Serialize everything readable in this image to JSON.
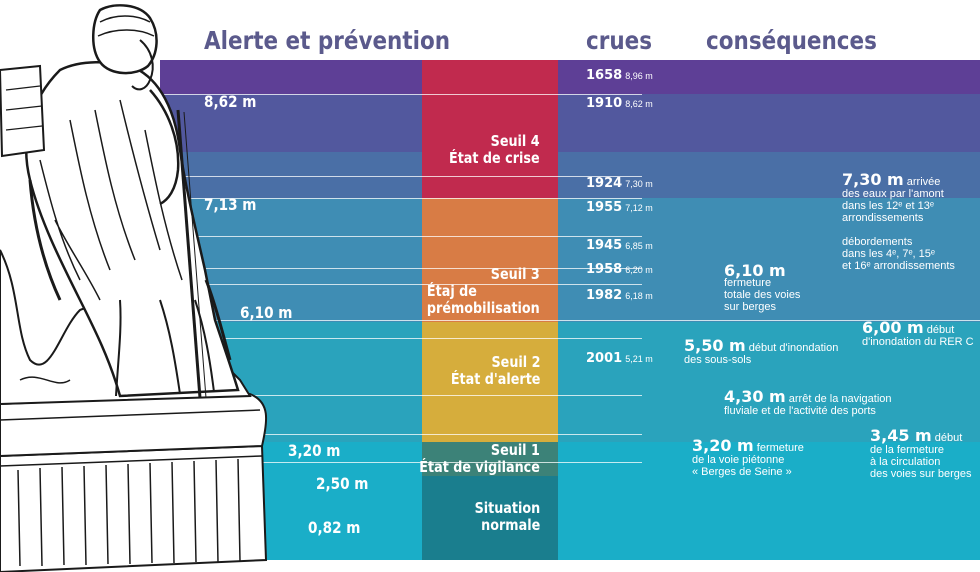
{
  "headings": {
    "alerte": "Alerte et prévention",
    "crues": "crues",
    "consequences": "conséquences"
  },
  "colors": {
    "violet": "#5e3f96",
    "indigo": "#52589e",
    "steel": "#4a6fa6",
    "blue": "#3f8db4",
    "teal": "#2aa3bc",
    "cyan": "#1aaec8",
    "heading": "#5b5a8c",
    "seuil4": "#c12a4e",
    "seuil3": "#d87c45",
    "seuil2": "#d6ad3c",
    "seuil1": "#3c8278",
    "normal": "#1a7e8e"
  },
  "illustration": "statue-du-zouave-icon",
  "gauge_marks": [
    "8,62 m",
    "7,13 m",
    "6,10 m",
    "3,20 m",
    "2,50 m",
    "0,82 m"
  ],
  "seuils": [
    {
      "line1": "Seuil 4",
      "line2": "État de crise"
    },
    {
      "line1": "Seuil 3",
      "line2": "Étaj de",
      "line3": "prémobilisation"
    },
    {
      "line1": "Seuil 2",
      "line2": "État d'alerte"
    },
    {
      "line1": "Seuil 1",
      "line2": "État de vigilance"
    },
    {
      "line1": "Situation",
      "line2": "normale"
    }
  ],
  "crues": [
    {
      "year": "1658",
      "height": "8,96 m"
    },
    {
      "year": "1910",
      "height": "8,62 m"
    },
    {
      "year": "1924",
      "height": "7,30 m"
    },
    {
      "year": "1955",
      "height": "7,12 m"
    },
    {
      "year": "1945",
      "height": "6,85 m"
    },
    {
      "year": "1958",
      "height": "6,20 m"
    },
    {
      "year": "1982",
      "height": "6,18 m"
    },
    {
      "year": "2001",
      "height": "5,21 m"
    }
  ],
  "consequences": [
    {
      "big": "7,30 m",
      "l1": "arrivée",
      "l2": "des eaux par l'amont",
      "l3": "dans les 12ᵉ et 13ᵉ",
      "l4": "arrondissements"
    },
    {
      "l1": "débordements",
      "l2": "dans les 4ᵉ, 7ᵉ, 15ᵉ",
      "l3": "et 16ᵉ arrondissements"
    },
    {
      "big": "6,10 m",
      "l1": "fermeture",
      "l2": "totale des voies",
      "l3": "sur berges"
    },
    {
      "big": "6,00 m",
      "l1": "début",
      "l2": "d'inondation du RER C"
    },
    {
      "big": "5,50 m",
      "l1": "début d'inondation",
      "l2": "des sous-sols"
    },
    {
      "big": "4,30 m",
      "l1": "arrêt de la navigation",
      "l2": "fluviale et de l'activité des ports"
    },
    {
      "big": "3,20 m",
      "l1": "fermeture",
      "l2": "de la voie piétonne",
      "l3": "« Berges de Seine »"
    },
    {
      "big": "3,45 m",
      "l1": "début",
      "l2": "de la fermeture",
      "l3": "à la circulation",
      "l4": "des voies sur berges"
    }
  ]
}
